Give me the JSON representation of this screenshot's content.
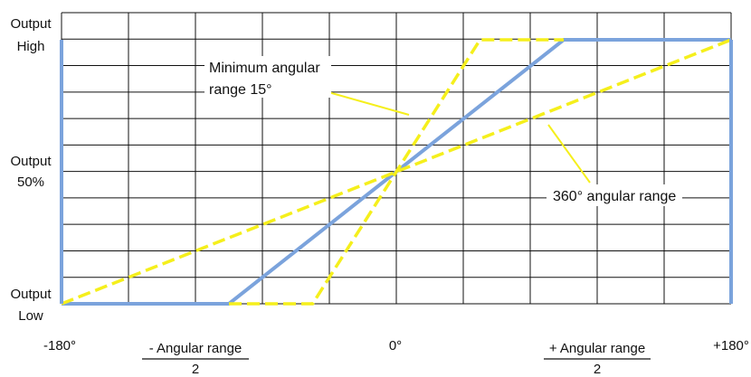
{
  "chart_data": {
    "type": "line",
    "title": "",
    "xlabel": "",
    "ylabel": "",
    "x_ticks": [
      "-180°",
      "0°",
      "+180°"
    ],
    "x_fraction_labels": [
      {
        "numerator": "- Angular range",
        "denominator": "2",
        "x": -90
      },
      {
        "numerator": "+ Angular range",
        "denominator": "2",
        "x": 90
      }
    ],
    "y_ticks": [
      {
        "line1": "Output",
        "line2": "High",
        "y": 100
      },
      {
        "line1": "Output",
        "line2": "50%",
        "y": 50
      },
      {
        "line1": "Output",
        "line2": "Low",
        "y": 0
      }
    ],
    "xlim": [
      -180,
      180
    ],
    "ylim": [
      0,
      100
    ],
    "grid": true,
    "series": [
      {
        "name": "",
        "style": "solid",
        "color": "#7BA3DC",
        "points": [
          [
            -180,
            0
          ],
          [
            -180,
            0
          ],
          [
            -90,
            0
          ],
          [
            90,
            100
          ],
          [
            180,
            100
          ]
        ]
      },
      {
        "name": "",
        "style": "dashed",
        "color": "#F5EF1C",
        "points": [
          [
            -90,
            0
          ],
          [
            -45,
            0
          ],
          [
            45,
            100
          ],
          [
            90,
            100
          ]
        ]
      },
      {
        "name": "",
        "style": "dashed",
        "color": "#F5EF1C",
        "points": [
          [
            -180,
            0
          ],
          [
            180,
            100
          ]
        ]
      }
    ],
    "annotations": [
      {
        "lines": [
          "Minimum angular",
          "range 15°"
        ]
      },
      {
        "lines": [
          "360° angular range"
        ]
      }
    ]
  }
}
